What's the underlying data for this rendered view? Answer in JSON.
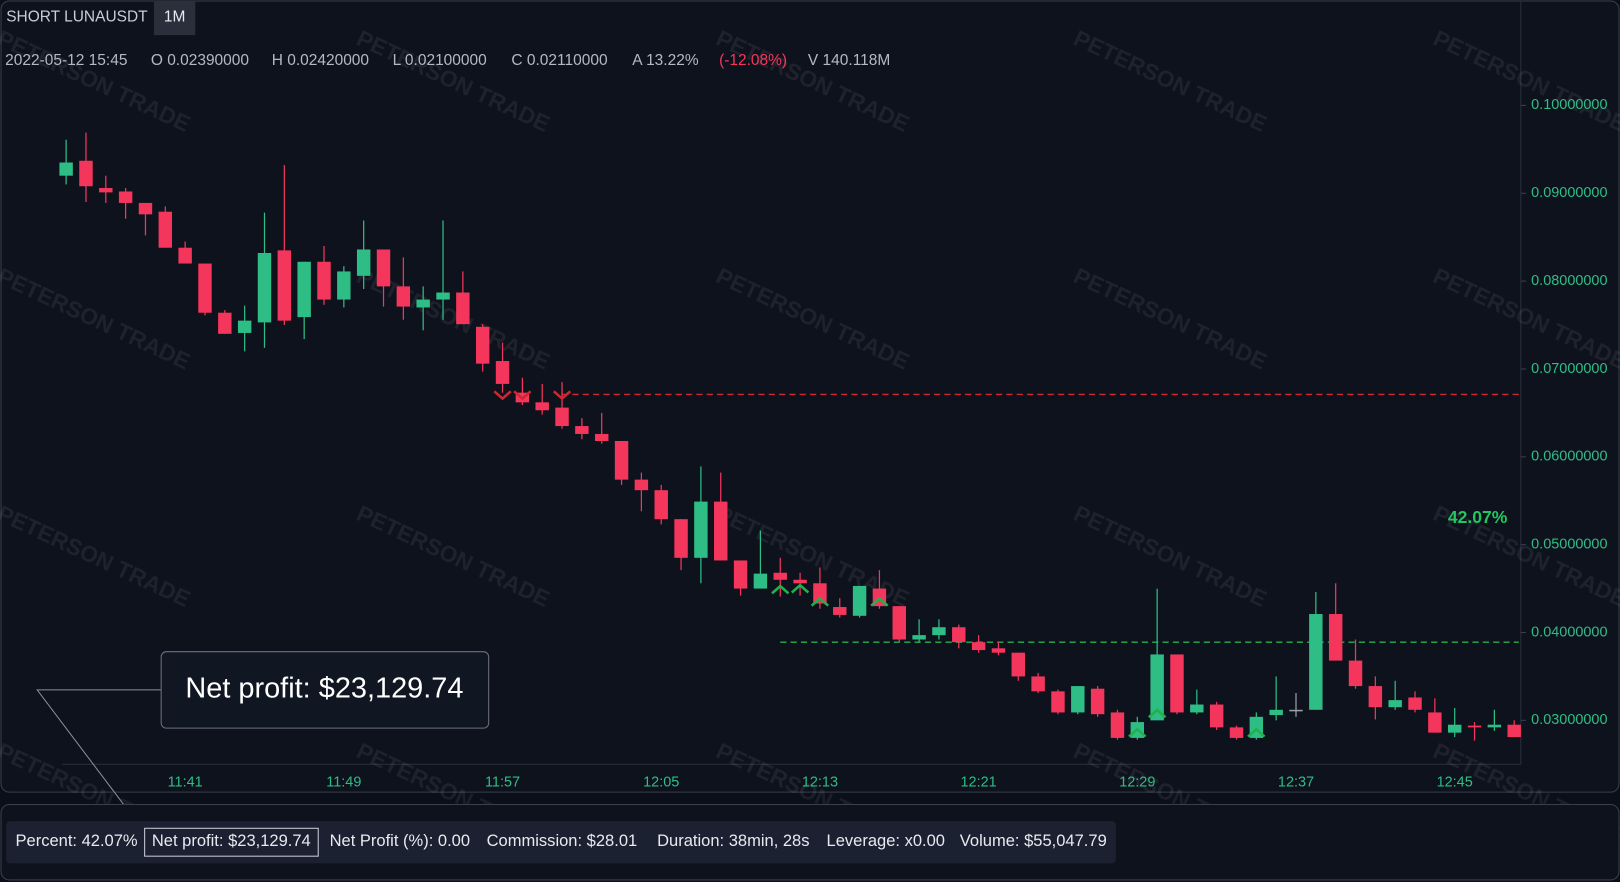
{
  "toolbar": {
    "symbol": "SHORT LUNAUSDT",
    "interval": "1M"
  },
  "ohlc_legend": [
    "2022-05-12 15:45",
    "O 0.02390000",
    "H 0.02420000",
    "L 0.02100000",
    "C 0.02110000",
    "A 13.22%",
    "(-12.08%)",
    "V 140.118M"
  ],
  "watermark": "PETERSON TRADE",
  "stats": [
    "Percent: 42.07%",
    "Net profit: $23,129.74",
    "Net Profit (%): 0.00",
    "Commission: $28.01",
    "Duration: 38min, 28s",
    "Leverage: x0.00",
    "Volume: $55,047.79"
  ],
  "chart_data": {
    "type": "candlestick",
    "categories": [
      null,
      null,
      null,
      null,
      null,
      null,
      "11:41",
      null,
      null,
      null,
      null,
      null,
      null,
      null,
      "11:49",
      null,
      null,
      null,
      null,
      null,
      null,
      null,
      "11:57",
      null,
      null,
      null,
      null,
      null,
      null,
      null,
      "12:05",
      null,
      null,
      null,
      null,
      null,
      null,
      null,
      "12:13",
      null,
      null,
      null,
      null,
      null,
      null,
      null,
      "12:21",
      null,
      null,
      null,
      null,
      null,
      null,
      null,
      "12:29",
      null,
      null,
      null,
      null,
      null,
      null,
      null,
      "12:37",
      null,
      null,
      null,
      null,
      null,
      null,
      null,
      "12:45",
      null,
      null,
      null
    ],
    "open": [
      0.092,
      0.0937,
      0.0906,
      0.0902,
      0.0889,
      0.0879,
      0.0838,
      0.082,
      0.0764,
      0.0741,
      0.0753,
      0.0835,
      0.0759,
      0.0822,
      0.0779,
      0.0806,
      0.0836,
      0.0794,
      0.077,
      0.0779,
      0.0787,
      0.0748,
      0.0709,
      0.0673,
      0.0662,
      0.0656,
      0.0635,
      0.0626,
      0.0618,
      0.0574,
      0.0562,
      0.0529,
      0.0485,
      0.0549,
      0.0482,
      0.045,
      0.0468,
      0.046,
      0.0456,
      0.0429,
      0.0419,
      0.045,
      0.043,
      0.0392,
      0.0397,
      0.0406,
      0.0389,
      0.0382,
      0.0377,
      0.035,
      0.0333,
      0.0309,
      0.0336,
      0.0309,
      0.028,
      0.03,
      0.0375,
      0.0309,
      0.0318,
      0.0292,
      0.028,
      0.0306,
      0.0312,
      0.0312,
      0.0421,
      0.0368,
      0.0339,
      0.0315,
      0.0326,
      0.0309,
      0.0286,
      0.0294,
      0.0292,
      0.0295
    ],
    "high": [
      0.0961,
      0.0969,
      0.092,
      0.0906,
      0.0889,
      0.0885,
      0.0845,
      0.082,
      0.0767,
      0.0772,
      0.0878,
      0.0932,
      0.0822,
      0.084,
      0.0817,
      0.0869,
      0.0836,
      0.0827,
      0.0794,
      0.0869,
      0.0811,
      0.0751,
      0.073,
      0.069,
      0.0683,
      0.0685,
      0.0644,
      0.065,
      0.0618,
      0.0582,
      0.0568,
      0.0529,
      0.0589,
      0.0582,
      0.0482,
      0.0516,
      0.0485,
      0.0468,
      0.0474,
      0.0439,
      0.0453,
      0.0471,
      0.043,
      0.0415,
      0.0415,
      0.0409,
      0.0397,
      0.0389,
      0.0377,
      0.0354,
      0.0335,
      0.0339,
      0.0339,
      0.0312,
      0.0304,
      0.045,
      0.0375,
      0.0335,
      0.0321,
      0.0294,
      0.0309,
      0.035,
      0.0331,
      0.0446,
      0.0456,
      0.0392,
      0.035,
      0.0345,
      0.0333,
      0.0325,
      0.0314,
      0.0298,
      0.0312,
      0.03
    ],
    "low": [
      0.091,
      0.089,
      0.0889,
      0.0871,
      0.0852,
      0.0838,
      0.082,
      0.0761,
      0.074,
      0.072,
      0.0724,
      0.075,
      0.0734,
      0.0773,
      0.077,
      0.0791,
      0.0771,
      0.0756,
      0.0744,
      0.0756,
      0.0751,
      0.0697,
      0.0673,
      0.0659,
      0.0648,
      0.0632,
      0.062,
      0.0615,
      0.0568,
      0.0538,
      0.0523,
      0.0471,
      0.0456,
      0.0482,
      0.0442,
      0.045,
      0.0441,
      0.0442,
      0.0427,
      0.0417,
      0.0417,
      0.0427,
      0.0389,
      0.0389,
      0.0392,
      0.0382,
      0.0377,
      0.0374,
      0.0345,
      0.0331,
      0.0307,
      0.0307,
      0.0304,
      0.0278,
      0.0278,
      0.03,
      0.0307,
      0.0307,
      0.0289,
      0.0278,
      0.0278,
      0.03,
      0.0304,
      0.0312,
      0.0368,
      0.0336,
      0.0301,
      0.0312,
      0.0309,
      0.0286,
      0.0281,
      0.0277,
      0.0288,
      0.0281
    ],
    "close": [
      0.0935,
      0.0908,
      0.0901,
      0.0889,
      0.0876,
      0.0838,
      0.082,
      0.0764,
      0.074,
      0.0755,
      0.0832,
      0.0755,
      0.0822,
      0.0779,
      0.0811,
      0.0836,
      0.0794,
      0.0771,
      0.0779,
      0.0787,
      0.0751,
      0.0706,
      0.0683,
      0.0662,
      0.0653,
      0.0635,
      0.0626,
      0.0618,
      0.0574,
      0.0562,
      0.0529,
      0.0485,
      0.0549,
      0.0482,
      0.045,
      0.0467,
      0.046,
      0.0456,
      0.0433,
      0.042,
      0.0453,
      0.043,
      0.0392,
      0.0397,
      0.0406,
      0.0389,
      0.038,
      0.0377,
      0.035,
      0.0333,
      0.0309,
      0.0339,
      0.0307,
      0.028,
      0.0298,
      0.0375,
      0.0309,
      0.0318,
      0.0292,
      0.028,
      0.0304,
      0.0312,
      0.0312,
      0.0421,
      0.0368,
      0.0339,
      0.0315,
      0.0323,
      0.0312,
      0.0286,
      0.0295,
      0.0292,
      0.0295,
      0.0281
    ],
    "up_color": "#2ebd85",
    "down_color": "#f5365c",
    "flat_color": "#9aa0ab",
    "ylim": [
      0.025,
      0.112
    ],
    "yticks": [
      {
        "value": 0.03,
        "label": "0.03000000"
      },
      {
        "value": 0.04,
        "label": "0.04000000"
      },
      {
        "value": 0.05,
        "label": "0.05000000"
      },
      {
        "value": 0.06,
        "label": "0.06000000"
      },
      {
        "value": 0.07,
        "label": "0.07000000"
      },
      {
        "value": 0.08,
        "label": "0.08000000"
      },
      {
        "value": 0.09,
        "label": "0.09000000"
      },
      {
        "value": 0.1,
        "label": "0.10000000"
      }
    ],
    "levels": [
      {
        "value": 0.0671,
        "start": 25,
        "color": "#d0262f"
      },
      {
        "value": 0.0389,
        "start": 36,
        "color": "#22b04a"
      }
    ],
    "signals": {
      "sell": [
        22,
        23,
        25
      ],
      "buy": [
        36,
        37,
        38,
        41,
        54,
        55,
        60
      ]
    },
    "annotations": [
      "42.07%",
      "Net profit: $23,129.74"
    ]
  }
}
